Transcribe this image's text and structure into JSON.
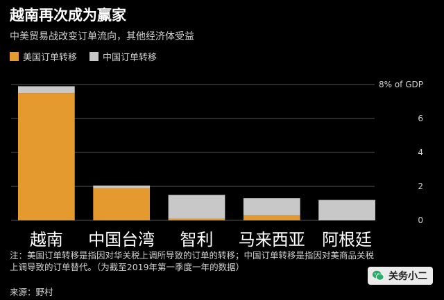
{
  "title": "越南再次成为赢家",
  "subtitle": "中美贸易战改变订单流向，其他经济体受益",
  "colors": {
    "us": "#E59A2F",
    "cn": "#C8C8C8",
    "background": "#000000",
    "grid": "#555555"
  },
  "note": "注：美国订单转移是指因对华关税上调所导致的订单的转移；中国订单转移是指因对美商品关税上调导致的订单替代。（为截至2019年第一季度一年的数据）",
  "source": "来源：野村",
  "watermark": {
    "icon": "wechat-icon",
    "label": "关务小二"
  },
  "chart_data": {
    "type": "bar",
    "stacked": true,
    "categories": [
      "越南",
      "中国台湾",
      "智利",
      "马来西亚",
      "阿根廷"
    ],
    "series": [
      {
        "name": "美国订单转移",
        "values": [
          7.5,
          1.9,
          0.1,
          0.3,
          0.0
        ]
      },
      {
        "name": "中国订单转移",
        "values": [
          0.4,
          0.15,
          1.4,
          1.0,
          1.2
        ]
      }
    ],
    "ylim": [
      0,
      8
    ],
    "yticks": [
      "0",
      "2",
      "4",
      "6",
      "8% of GDP"
    ],
    "ytick_values": [
      0,
      2,
      4,
      6,
      8
    ],
    "grid": true
  }
}
